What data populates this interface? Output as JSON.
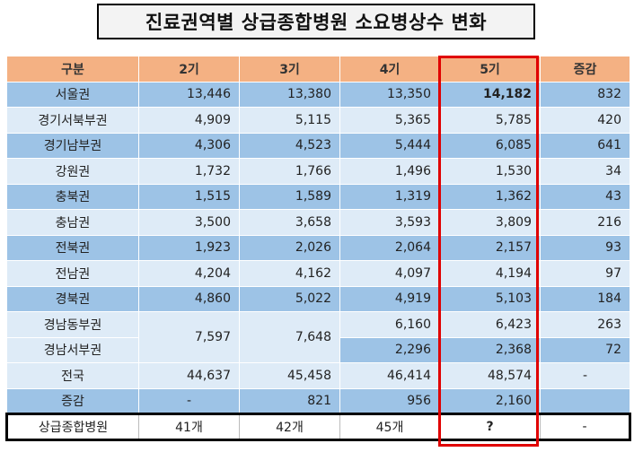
{
  "title": "진료권역별 상급종합병원 소요병상수 변화",
  "headers": [
    "구분",
    "2기",
    "3기",
    "4기",
    "5기",
    "증감"
  ],
  "rows": [
    {
      "region": "서울권",
      "g2": "13,446",
      "g3": "13,380",
      "g4": "13,350",
      "g5": "14,182",
      "diff": "832"
    },
    {
      "region": "경기서북부권",
      "g2": "4,909",
      "g3": "5,115",
      "g4": "5,365",
      "g5": "5,785",
      "diff": "420"
    },
    {
      "region": "경기남부권",
      "g2": "4,306",
      "g3": "4,523",
      "g4": "5,444",
      "g5": "6,085",
      "diff": "641"
    },
    {
      "region": "강원권",
      "g2": "1,732",
      "g3": "1,766",
      "g4": "1,496",
      "g5": "1,530",
      "diff": "34"
    },
    {
      "region": "충북권",
      "g2": "1,515",
      "g3": "1,589",
      "g4": "1,319",
      "g5": "1,362",
      "diff": "43"
    },
    {
      "region": "충남권",
      "g2": "3,500",
      "g3": "3,658",
      "g4": "3,593",
      "g5": "3,809",
      "diff": "216"
    },
    {
      "region": "전북권",
      "g2": "1,923",
      "g3": "2,026",
      "g4": "2,064",
      "g5": "2,157",
      "diff": "93"
    },
    {
      "region": "전남권",
      "g2": "4,204",
      "g3": "4,162",
      "g4": "4,097",
      "g5": "4,194",
      "diff": "97"
    },
    {
      "region": "경북권",
      "g2": "4,860",
      "g3": "5,022",
      "g4": "4,919",
      "g5": "5,103",
      "diff": "184"
    }
  ],
  "gyeongnam": {
    "merged_g2": "7,597",
    "merged_g3": "7,648",
    "east": {
      "region": "경남동부권",
      "g4": "6,160",
      "g5": "6,423",
      "diff": "263"
    },
    "west": {
      "region": "경남서부권",
      "g4": "2,296",
      "g5": "2,368",
      "diff": "72"
    }
  },
  "national": {
    "region": "전국",
    "g2": "44,637",
    "g3": "45,458",
    "g4": "46,414",
    "g5": "48,574",
    "diff": "-"
  },
  "change": {
    "region": "증감",
    "g2": "-",
    "g3": "821",
    "g4": "956",
    "g5": "2,160",
    "diff": ""
  },
  "hospitals": {
    "region": "상급종합병원",
    "g2": "41개",
    "g3": "42개",
    "g4": "45개",
    "g5": "?",
    "diff": "-"
  },
  "colors": {
    "header": "#f4b183",
    "row_dark": "#9dc3e6",
    "row_light": "#deebf7",
    "highlight_border": "#e00000"
  }
}
